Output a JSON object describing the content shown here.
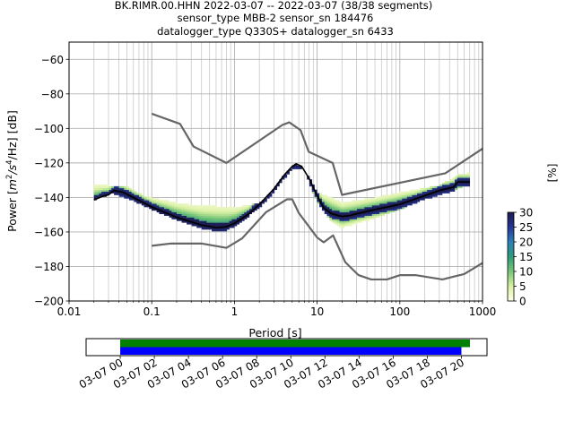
{
  "chart_data": {
    "type": "heatmap",
    "title": [
      "BK.RIMR.00.HHN   2022-03-07 -- 2022-03-07  (38/38 segments)",
      "sensor_type MBB-2 sensor_sn 184476",
      "datalogger_type Q330S+ datalogger_sn 6433"
    ],
    "xlabel": "Period [s]",
    "ylabel": "Power [m²/s⁴/Hz] [dB]",
    "ylabel_parts": {
      "main": "Power [",
      "m": "m",
      "sup2": "2",
      "slash_s": "/s",
      "sup4": "4",
      "rest": "/Hz] [dB]"
    },
    "x_scale": "log",
    "xlim": [
      0.01,
      1000
    ],
    "ylim": [
      -200,
      -50
    ],
    "x_ticks": [
      0.01,
      0.1,
      1,
      10,
      100,
      1000
    ],
    "x_tick_labels": [
      "0.01",
      "0.1",
      "1",
      "10",
      "100",
      "1000"
    ],
    "y_ticks": [
      -200,
      -180,
      -160,
      -140,
      -120,
      -100,
      -80,
      -60
    ],
    "y_tick_labels": [
      "−200",
      "−180",
      "−160",
      "−140",
      "−120",
      "−100",
      "−80",
      "−60"
    ],
    "grid": true,
    "colorbar": {
      "label": "[%]",
      "range": [
        0,
        30
      ],
      "ticks": [
        0,
        5,
        10,
        15,
        20,
        25,
        30
      ],
      "tick_labels": [
        "0",
        "5",
        "10",
        "15",
        "20",
        "25",
        "30"
      ],
      "colors": [
        "#ffffe5",
        "#d9f0a3",
        "#78c679",
        "#2e9b7a",
        "#2c7fb8",
        "#253494",
        "#1b1b4d"
      ]
    },
    "noise_models": {
      "color": "#666666",
      "high": [
        [
          0.1,
          -91.5
        ],
        [
          0.22,
          -97.4
        ],
        [
          0.32,
          -110.5
        ],
        [
          0.8,
          -120
        ],
        [
          3.8,
          -98
        ],
        [
          4.6,
          -96.5
        ],
        [
          6.3,
          -101
        ],
        [
          7.9,
          -113.5
        ],
        [
          15.4,
          -120
        ],
        [
          20,
          -138.5
        ],
        [
          354.8,
          -126
        ],
        [
          10000,
          -80
        ]
      ],
      "low": [
        [
          0.1,
          -168
        ],
        [
          0.17,
          -166.7
        ],
        [
          0.4,
          -166.7
        ],
        [
          0.8,
          -169.2
        ],
        [
          1.24,
          -163.7
        ],
        [
          2.4,
          -148.6
        ],
        [
          4.3,
          -141.1
        ],
        [
          5,
          -141.1
        ],
        [
          6,
          -149
        ],
        [
          10,
          -163.2
        ],
        [
          12,
          -166
        ],
        [
          15.6,
          -162
        ],
        [
          21.9,
          -177.5
        ],
        [
          31.6,
          -185
        ],
        [
          45,
          -187.5
        ],
        [
          70,
          -187.5
        ],
        [
          101,
          -185
        ],
        [
          154,
          -185
        ],
        [
          328,
          -187.5
        ],
        [
          600,
          -184.4
        ],
        [
          1000,
          -178
        ]
      ]
    },
    "mode": {
      "color": "#000000",
      "points": [
        [
          0.02,
          -141.5
        ],
        [
          0.025,
          -139.5
        ],
        [
          0.03,
          -138.5
        ],
        [
          0.035,
          -136
        ],
        [
          0.045,
          -137
        ],
        [
          0.06,
          -140
        ],
        [
          0.1,
          -145.5
        ],
        [
          0.2,
          -151.5
        ],
        [
          0.4,
          -156
        ],
        [
          0.6,
          -157.5
        ],
        [
          0.8,
          -157
        ],
        [
          1,
          -155
        ],
        [
          1.5,
          -149.5
        ],
        [
          2,
          -144
        ],
        [
          3,
          -135
        ],
        [
          4,
          -127
        ],
        [
          5,
          -122
        ],
        [
          5.6,
          -120.5
        ],
        [
          6.5,
          -122
        ],
        [
          8,
          -129
        ],
        [
          10,
          -139
        ],
        [
          12,
          -146
        ],
        [
          15,
          -149.5
        ],
        [
          20,
          -151
        ],
        [
          25,
          -150.5
        ],
        [
          30,
          -149.5
        ],
        [
          50,
          -147
        ],
        [
          80,
          -145
        ],
        [
          100,
          -144
        ],
        [
          150,
          -141
        ],
        [
          200,
          -139
        ],
        [
          300,
          -136
        ],
        [
          450,
          -134
        ],
        [
          500,
          -131
        ],
        [
          700,
          -131
        ]
      ]
    },
    "upper_spread": {
      "points": [
        [
          0.03,
          -133
        ],
        [
          0.05,
          -133.5
        ],
        [
          0.08,
          -139
        ],
        [
          0.2,
          -143
        ],
        [
          0.4,
          -145
        ],
        [
          0.6,
          -145
        ],
        [
          1,
          -146
        ],
        [
          2,
          -143
        ],
        [
          3,
          -138
        ],
        [
          5,
          -124
        ],
        [
          8,
          -128
        ],
        [
          10,
          -137
        ],
        [
          15,
          -140
        ],
        [
          20,
          -143
        ],
        [
          50,
          -140
        ],
        [
          100,
          -137
        ],
        [
          300,
          -133
        ],
        [
          500,
          -127
        ],
        [
          650,
          -126
        ]
      ]
    },
    "lower_spread": {
      "points": [
        [
          0.03,
          -137
        ],
        [
          0.06,
          -142
        ],
        [
          0.1,
          -147
        ],
        [
          0.2,
          -153
        ],
        [
          0.4,
          -158
        ],
        [
          0.6,
          -159.5
        ],
        [
          0.8,
          -159
        ],
        [
          1,
          -157
        ],
        [
          2,
          -146
        ],
        [
          3,
          -137
        ],
        [
          5,
          -123
        ],
        [
          7,
          -124
        ],
        [
          10,
          -143
        ],
        [
          15,
          -154
        ],
        [
          20,
          -157.5
        ],
        [
          30,
          -155
        ],
        [
          50,
          -152
        ],
        [
          100,
          -147
        ],
        [
          200,
          -141
        ],
        [
          400,
          -137
        ],
        [
          650,
          -133
        ]
      ]
    },
    "time_axis": {
      "tick_labels": [
        "03-07 00",
        "03-07 02",
        "03-07 04",
        "03-07 06",
        "03-07 08",
        "03-07 10",
        "03-07 12",
        "03-07 14",
        "03-07 16",
        "03-07 18",
        "03-07 20"
      ],
      "range_hours": [
        -2,
        21.5
      ],
      "bars": [
        {
          "color": "#008000",
          "start_hour": 0,
          "end_hour": 20.5
        },
        {
          "color": "#0000ff",
          "start_hour": 0,
          "end_hour": 20.0
        }
      ]
    }
  }
}
